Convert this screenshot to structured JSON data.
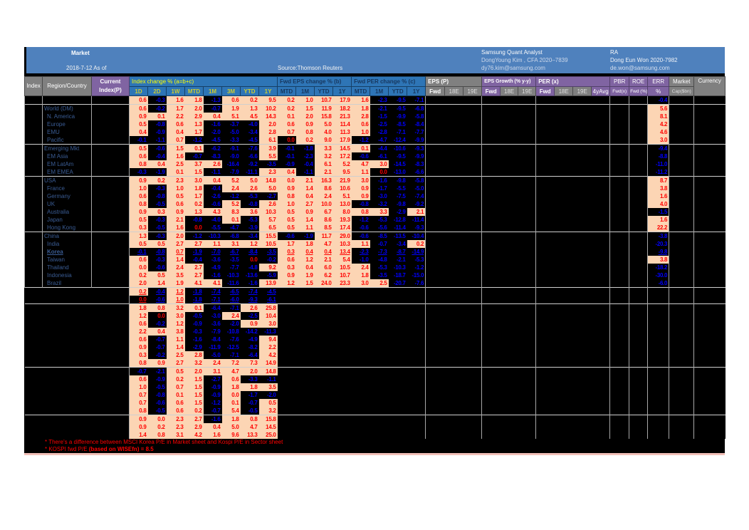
{
  "banner": {
    "title": "Market",
    "as_of": "2018-7-12 As of",
    "source": "Source:Thomson Reuters",
    "analyst_title": "Samsung Quant Analyst",
    "analyst_name": "DongYoung Kim , CFA 2020–7839",
    "analyst_email": "dy76.kim@samsung.com",
    "ra_title": "RA",
    "ra_name": "Dong Eun Won 2020-7982",
    "ra_email": "de.won@samsung.com"
  },
  "header": {
    "index": "Index",
    "region": "Region/Country",
    "current1": "Current",
    "current2": "Index(P)",
    "groups": {
      "index_change": "Index change % (a=b+c)",
      "fwd_eps": "Fwd EPS change % (b)",
      "fwd_per": "Fwd PER change % (c)",
      "eps_p": "EPS (P)",
      "eps_growth": "EPS Growth (% y-y)",
      "per_x": "PER (x)",
      "pbr": "PBR",
      "roe": "ROE",
      "err": "ERR",
      "market": "Market",
      "currency": "Currency"
    },
    "sub": {
      "index_change": [
        "1D",
        "2D",
        "1W",
        "MTD",
        "1M",
        "3M",
        "YTD",
        "1Y"
      ],
      "fwd_eps": [
        "MTD",
        "1M",
        "YTD",
        "1Y"
      ],
      "fwd_per": [
        "MTD",
        "1M",
        "YTD",
        "1Y"
      ],
      "eps_p": [
        "Fwd",
        "18E",
        "19E"
      ],
      "eps_growth": [
        "Fwd",
        "18E",
        "19E"
      ],
      "per_x": [
        "Fwd",
        "18E",
        "19E",
        "4yAvg"
      ],
      "pbr": "Fwd(x)",
      "roe": "Fwd (%)",
      "err": "%",
      "market": "Cap($bn)"
    }
  },
  "rows": [
    {
      "l": "",
      "c": [
        "0.6",
        "-0.3",
        "1.6",
        "1.8",
        "-1.3",
        "0.6",
        "0.2",
        "9.5",
        "0.2",
        "1.0",
        "10.7",
        "17.9",
        "1.6",
        "-2.3",
        "-9.5",
        "-7.1",
        "-0.4"
      ]
    },
    {
      "l": "World (DM)",
      "s": 1,
      "c": [
        "0.6",
        "-0.2",
        "1.7",
        "2.0",
        "-0.7",
        "1.9",
        "1.3",
        "10.2",
        "0.2",
        "1.5",
        "11.9",
        "18.2",
        "1.8",
        "-2.1",
        "-9.5",
        "-6.8",
        "5.6"
      ]
    },
    {
      "l": "N. America",
      "i": 1,
      "c": [
        "0.9",
        "0.1",
        "2.2",
        "2.9",
        "0.4",
        "5.1",
        "4.5",
        "14.3",
        "0.1",
        "2.0",
        "15.8",
        "21.3",
        "2.8",
        "-1.5",
        "-9.9",
        "-5.8",
        "8.1"
      ]
    },
    {
      "l": "Europe",
      "i": 1,
      "c": [
        "0.5",
        "-0.8",
        "0.6",
        "1.3",
        "-1.6",
        "-3.7",
        "-4.0",
        "2.0",
        "0.6",
        "0.9",
        "5.0",
        "11.4",
        "0.6",
        "-2.5",
        "-8.5",
        "-8.4",
        "4.2"
      ]
    },
    {
      "l": "EMU",
      "i": 1,
      "c": [
        "0.4",
        "-0.9",
        "0.4",
        "1.7",
        "-2.0",
        "-5.0",
        "-3.4",
        "2.8",
        "0.7",
        "0.8",
        "4.0",
        "11.3",
        "1.0",
        "-2.8",
        "-7.1",
        "-7.7",
        "4.6"
      ]
    },
    {
      "l": "Pacific",
      "i": 1,
      "k": [
        8
      ],
      "c": [
        "-0.1",
        "-1.1",
        "0.7",
        "-1.2",
        "-4.5",
        "-3.3",
        "-4.5",
        "6.1",
        "0.0",
        "0.2",
        "9.0",
        "17.9",
        "-1.2",
        "-4.7",
        "-12.4",
        "-9.9",
        "3.0"
      ]
    },
    {
      "l": "Emerging Mkt",
      "s": 1,
      "c": [
        "0.5",
        "-0.6",
        "1.5",
        "0.1",
        "-6.2",
        "-9.1",
        "-7.6",
        "3.9",
        "-0.1",
        "-1.8",
        "3.3",
        "14.5",
        "0.1",
        "-4.4",
        "-10.6",
        "-9.3",
        "-9.4"
      ]
    },
    {
      "l": "EM Asia",
      "i": 1,
      "c": [
        "0.6",
        "-0.4",
        "1.6",
        "-0.7",
        "-8.3",
        "-9.0",
        "-6.6",
        "5.5",
        "-0.1",
        "-2.3",
        "3.2",
        "17.2",
        "-0.6",
        "-6.1",
        "-9.5",
        "-9.9",
        "-8.8"
      ]
    },
    {
      "l": "EM LatAm",
      "i": 1,
      "c": [
        "0.8",
        "0.4",
        "2.5",
        "3.7",
        "2.6",
        "-16.4",
        "-9.2",
        "-3.5",
        "-0.9",
        "-0.4",
        "6.1",
        "5.2",
        "4.7",
        "3.0",
        "-14.5",
        "-8.3",
        "-11.0"
      ]
    },
    {
      "l": "EM EMEA",
      "i": 1,
      "k": [
        13
      ],
      "c": [
        "-0.3",
        "-1.9",
        "0.1",
        "1.5",
        "-1.1",
        "-7.9",
        "-11.1",
        "2.3",
        "0.4",
        "-1.1",
        "2.1",
        "9.5",
        "1.1",
        "0.0",
        "-13.0",
        "-6.6",
        "-11.2"
      ]
    },
    {
      "l": "USA",
      "s": 1,
      "c": [
        "0.9",
        "0.2",
        "2.3",
        "3.0",
        "0.4",
        "5.2",
        "5.0",
        "14.8",
        "0.0",
        "2.1",
        "16.3",
        "21.9",
        "3.0",
        "-1.6",
        "-9.8",
        "-5.8",
        "8.7"
      ]
    },
    {
      "l": "France",
      "i": 1,
      "c": [
        "1.0",
        "-0.3",
        "1.0",
        "1.8",
        "-0.4",
        "2.4",
        "2.6",
        "5.0",
        "0.9",
        "1.4",
        "8.6",
        "10.6",
        "0.9",
        "-1.7",
        "-5.5",
        "-5.0",
        "3.8"
      ]
    },
    {
      "l": "Germany",
      "i": 1,
      "c": [
        "0.6",
        "-0.8",
        "0.5",
        "1.7",
        "-2.6",
        "-1.2",
        "-5.3",
        "-2.7",
        "0.8",
        "0.4",
        "2.4",
        "5.1",
        "0.9",
        "-3.0",
        "-7.5",
        "-7.4",
        "1.6"
      ]
    },
    {
      "l": "UK",
      "i": 1,
      "c": [
        "0.8",
        "-0.5",
        "0.6",
        "0.2",
        "-0.6",
        "5.2",
        "-0.8",
        "2.6",
        "1.0",
        "2.7",
        "10.0",
        "13.0",
        "-0.8",
        "-3.2",
        "-9.8",
        "-9.2",
        "4.0"
      ]
    },
    {
      "l": "Australia",
      "i": 1,
      "c": [
        "0.9",
        "0.3",
        "0.9",
        "1.3",
        "4.3",
        "8.3",
        "3.6",
        "10.3",
        "0.5",
        "0.9",
        "6.7",
        "8.0",
        "0.8",
        "3.3",
        "-2.9",
        "2.1",
        "-1.5"
      ]
    },
    {
      "l": "Japan",
      "i": 1,
      "c": [
        "0.5",
        "-0.3",
        "2.1",
        "-0.8",
        "-4.0",
        "0.1",
        "-5.3",
        "5.7",
        "0.5",
        "1.4",
        "8.6",
        "19.3",
        "-1.2",
        "-5.3",
        "-12.8",
        "-11.4",
        "1.6"
      ]
    },
    {
      "l": "Hong Kong",
      "i": 1,
      "k": [
        3
      ],
      "c": [
        "0.3",
        "-0.5",
        "1.6",
        "0.0",
        "-5.5",
        "-4.7",
        "-3.9",
        "6.5",
        "0.5",
        "1.1",
        "8.5",
        "17.4",
        "-0.6",
        "-5.6",
        "-11.4",
        "-9.3",
        "22.2"
      ]
    },
    {
      "l": "China",
      "s": 1,
      "c": [
        "1.3",
        "-0.3",
        "2.0",
        "-1.2",
        "-10.3",
        "-6.8",
        "-3.4",
        "15.5",
        "-0.6",
        "-1.9",
        "11.7",
        "29.0",
        "-0.6",
        "-8.5",
        "-13.5",
        "-10.4",
        "-3.8"
      ]
    },
    {
      "l": "India",
      "i": 1,
      "c": [
        "0.5",
        "0.5",
        "2.7",
        "2.7",
        "1.1",
        "3.1",
        "1.2",
        "10.5",
        "1.7",
        "1.8",
        "4.7",
        "10.3",
        "1.1",
        "-0.7",
        "-3.4",
        "0.2",
        "-20.3"
      ]
    },
    {
      "l": "Korea",
      "i": 1,
      "u": 1,
      "c": [
        "-0.1",
        "-0.8",
        "0.7",
        "-1.9",
        "-7.0",
        "-6.7",
        "-8.4",
        "-3.5",
        "0.3",
        "0.4",
        "0.4",
        "13.4",
        "-2.3",
        "-7.3",
        "-8.7",
        "-14.9",
        "-9.8"
      ]
    },
    {
      "l": "Taiwan",
      "i": 1,
      "k": [
        6
      ],
      "c": [
        "0.6",
        "-0.3",
        "1.4",
        "-0.4",
        "-3.6",
        "-3.5",
        "0.0",
        "-0.2",
        "0.6",
        "1.2",
        "2.1",
        "5.4",
        "-1.0",
        "-4.8",
        "-2.1",
        "-5.3",
        "3.8"
      ]
    },
    {
      "l": "Thailand",
      "i": 1,
      "c": [
        "0.0",
        "-0.6",
        "2.4",
        "2.7",
        "-4.9",
        "-7.7",
        "-4.8",
        "9.2",
        "0.3",
        "0.4",
        "6.0",
        "10.5",
        "2.4",
        "-5.3",
        "-10.3",
        "-1.2",
        "-18.2"
      ]
    },
    {
      "l": "Indonesia",
      "i": 1,
      "c": [
        "0.2",
        "0.5",
        "3.5",
        "2.7",
        "-1.6",
        "-10.3",
        "-13.6",
        "-5.9",
        "0.9",
        "1.9",
        "6.2",
        "10.7",
        "1.8",
        "-3.5",
        "-18.7",
        "-15.0",
        "-30.0"
      ]
    },
    {
      "l": "Brazil",
      "i": 1,
      "c": [
        "2.0",
        "1.4",
        "1.9",
        "4.1",
        "4.1",
        "-11.6",
        "-1.6",
        "13.9",
        "1.2",
        "1.5",
        "24.0",
        "23.3",
        "3.0",
        "2.5",
        "-20.7",
        "-7.6",
        "-6.0"
      ]
    },
    {
      "l": "",
      "u": 1,
      "s": 1,
      "c": [
        "0.2",
        "-0.4",
        "1.2",
        "-1.8",
        "-7.4",
        "-6.5",
        "-7.4",
        "-4.5"
      ]
    },
    {
      "l": "",
      "u": 1,
      "k": [
        0
      ],
      "c": [
        "0.0",
        "-0.6",
        "1.0",
        "-1.8",
        "-7.1",
        "-6.0",
        "-9.3",
        "-6.1"
      ]
    },
    {
      "l": "",
      "s": 1,
      "c": [
        "1.8",
        "0.8",
        "3.2",
        "0.1",
        "-6.4",
        "-7.1",
        "2.6",
        "25.8"
      ]
    },
    {
      "l": "",
      "k": [
        1
      ],
      "c": [
        "1.2",
        "0.0",
        "3.0",
        "-0.5",
        "-3.0",
        "2.4",
        "-2.5",
        "10.4"
      ]
    },
    {
      "l": "",
      "c": [
        "0.6",
        "-0.2",
        "1.2",
        "-0.9",
        "-3.6",
        "-2.0",
        "0.9",
        "3.0"
      ]
    },
    {
      "l": "",
      "c": [
        "2.2",
        "0.4",
        "3.8",
        "-0.3",
        "-7.9",
        "-10.8",
        "-14.2",
        "-11.3"
      ]
    },
    {
      "l": "",
      "c": [
        "0.6",
        "-0.7",
        "1.1",
        "-1.6",
        "-8.4",
        "-7.6",
        "-4.9",
        "9.4"
      ]
    },
    {
      "l": "",
      "c": [
        "0.9",
        "-0.7",
        "1.4",
        "-2.9",
        "-11.9",
        "-12.5",
        "-8.2",
        "2.2"
      ]
    },
    {
      "l": "",
      "c": [
        "0.3",
        "-0.2",
        "2.5",
        "2.8",
        "-5.0",
        "-7.1",
        "-6.4",
        "4.2"
      ]
    },
    {
      "l": "",
      "c": [
        "0.8",
        "0.9",
        "2.7",
        "3.2",
        "2.4",
        "7.2",
        "7.3",
        "14.9"
      ]
    },
    {
      "l": "",
      "s": 1,
      "c": [
        "-0.7",
        "-2.1",
        "0.5",
        "2.0",
        "3.1",
        "4.7",
        "2.0",
        "14.8"
      ]
    },
    {
      "l": "",
      "c": [
        "0.6",
        "-0.9",
        "0.2",
        "1.5",
        "-2.7",
        "0.6",
        "-3.3",
        "-1.1"
      ]
    },
    {
      "l": "",
      "c": [
        "1.0",
        "-0.5",
        "0.7",
        "1.5",
        "-0.9",
        "1.8",
        "1.8",
        "3.5"
      ]
    },
    {
      "l": "",
      "c": [
        "0.7",
        "-0.8",
        "0.1",
        "1.5",
        "-0.9",
        "0.0",
        "-1.7",
        "-2.0"
      ]
    },
    {
      "l": "",
      "c": [
        "0.7",
        "-0.6",
        "0.6",
        "1.5",
        "-1.2",
        "0.1",
        "-0.7",
        "0.5"
      ]
    },
    {
      "l": "",
      "c": [
        "0.8",
        "-0.5",
        "0.6",
        "0.2",
        "-0.7",
        "5.4",
        "-0.5",
        "3.2"
      ]
    },
    {
      "l": "",
      "s": 1,
      "c": [
        "0.9",
        "0.0",
        "2.3",
        "2.7",
        "-1.6",
        "1.8",
        "0.8",
        "15.8"
      ]
    },
    {
      "l": "",
      "c": [
        "0.9",
        "0.2",
        "2.3",
        "2.9",
        "0.4",
        "5.0",
        "4.7",
        "14.5"
      ]
    },
    {
      "l": "",
      "c": [
        "1.4",
        "0.8",
        "3.1",
        "4.2",
        "1.6",
        "9.6",
        "13.3",
        "25.0"
      ]
    }
  ],
  "footnotes": {
    "line1": "* There's a difference between MSCI Korea P/E in Market sheet and Kospi P/E in Sector sheet",
    "line2_a": "* KOSPI fwd P/E ",
    "line2_b": "(based on WISEfn) = 8.5"
  },
  "colors": {
    "band_blue": "#4F81BD",
    "header_blue": "#2E75B6",
    "header_grey": "#808080",
    "header_purple": "#8064A2",
    "positive_bg": "#FCD5B4",
    "positive_text": "#FF0000",
    "negative_text": "#0000FF",
    "cell_bg": "#000000",
    "row_label_text": "#3A5C94",
    "group_header_yellow": "#FFFF00",
    "subheader_yellow_green": "#CCCC33",
    "footnote_red": "#FF0000",
    "bottom_strip_pink": "#F2C0B8"
  }
}
